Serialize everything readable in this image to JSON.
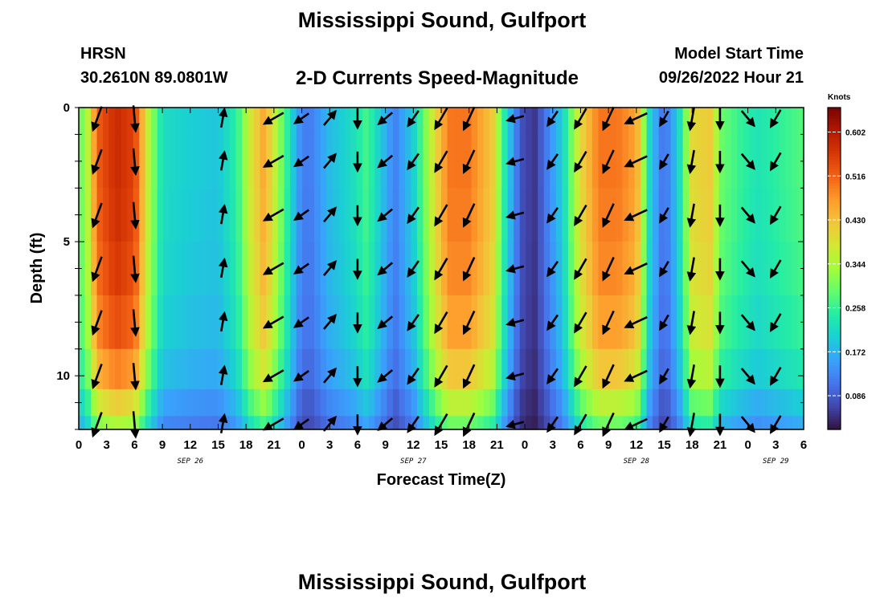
{
  "header": {
    "title": "Mississippi Sound, Gulfport",
    "station": "HRSN",
    "coords": "30.2610N  89.0801W",
    "product": "2-D Currents Speed-Magnitude",
    "model_label": "Model Start Time",
    "model_time": "09/26/2022 Hour 21"
  },
  "footer": {
    "title": "Mississippi Sound, Gulfport"
  },
  "chart_data": {
    "type": "heatmap",
    "xlabel": "Forecast Time(Z)",
    "ylabel": "Depth (ft)",
    "x_tick_labels": [
      "0",
      "3",
      "6",
      "9",
      "12",
      "15",
      "18",
      "21",
      "0",
      "3",
      "6",
      "9",
      "12",
      "15",
      "18",
      "21",
      "0",
      "3",
      "6",
      "9",
      "12",
      "15",
      "18",
      "21",
      "0",
      "3",
      "6"
    ],
    "x_range_hours": [
      0,
      78
    ],
    "date_labels": [
      {
        "label": "SEP 26",
        "hour": 12
      },
      {
        "label": "SEP 27",
        "hour": 36
      },
      {
        "label": "SEP 28",
        "hour": 60
      },
      {
        "label": "SEP 29",
        "hour": 75
      }
    ],
    "y_ticks": [
      0,
      5,
      10
    ],
    "y_range": [
      0,
      12
    ],
    "y_inverted": true,
    "depth_levels": [
      0.4,
      2.0,
      4.0,
      6.0,
      8.0,
      10.0,
      11.8
    ],
    "colorbar": {
      "label": "Knots",
      "ticks": [
        0.086,
        0.172,
        0.258,
        0.344,
        0.43,
        0.516,
        0.602
      ],
      "tick_labels": [
        "0.086",
        "0.172",
        "0.258",
        "0.344",
        "0.430",
        "0.516",
        "0.602"
      ],
      "range": [
        0.02,
        0.65
      ],
      "colormap": [
        "#30123b",
        "#4145ab",
        "#4675ed",
        "#39a2fc",
        "#1bcfd4",
        "#24eca6",
        "#61fc6c",
        "#a4fc3b",
        "#d1e834",
        "#f3c63a",
        "#fe9b2d",
        "#f36315",
        "#d93806",
        "#b11901",
        "#7a0403"
      ]
    },
    "speed_profile": {
      "hours": [
        0,
        1,
        2,
        4,
        6,
        7.5,
        9,
        12,
        15,
        17,
        18.5,
        20,
        23,
        24,
        25,
        27,
        29.5,
        31,
        34,
        36,
        39,
        40,
        42,
        44.5,
        46,
        47.5,
        49,
        52,
        54,
        56,
        58,
        60,
        61.5,
        63,
        64.5,
        66,
        68,
        69,
        71,
        73,
        74,
        78
      ],
      "speeds": [
        0.28,
        0.36,
        0.52,
        0.58,
        0.55,
        0.36,
        0.22,
        0.2,
        0.19,
        0.25,
        0.38,
        0.46,
        0.2,
        0.12,
        0.12,
        0.18,
        0.22,
        0.27,
        0.12,
        0.2,
        0.45,
        0.5,
        0.5,
        0.42,
        0.22,
        0.08,
        0.05,
        0.2,
        0.4,
        0.5,
        0.5,
        0.46,
        0.2,
        0.1,
        0.2,
        0.4,
        0.42,
        0.3,
        0.26,
        0.23,
        0.24,
        0.28
      ]
    },
    "vector_hours": [
      2,
      6,
      15.5,
      21,
      24,
      27,
      30,
      33,
      36,
      39,
      42,
      47,
      51,
      54,
      57,
      60,
      63,
      66,
      69,
      72,
      75
    ],
    "vector_directions_deg": [
      200,
      175,
      10,
      240,
      235,
      40,
      180,
      230,
      215,
      210,
      205,
      255,
      215,
      210,
      205,
      245,
      210,
      190,
      180,
      140,
      210
    ]
  }
}
